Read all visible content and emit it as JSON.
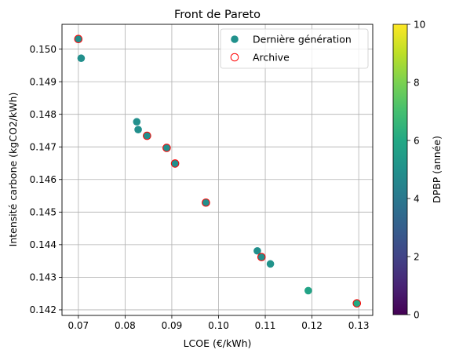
{
  "chart_data": {
    "type": "scatter",
    "title": "Front de Pareto",
    "xlabel": "LCOE (€/kWh)",
    "ylabel": "Intensité carbone (kgCO2/kWh)",
    "xlim": [
      0.0665,
      0.133
    ],
    "ylim": [
      0.14183,
      0.15076
    ],
    "xticks": [
      0.07,
      0.08,
      0.09,
      0.1,
      0.11,
      0.12,
      0.13
    ],
    "xtick_labels": [
      "0.07",
      "0.08",
      "0.09",
      "0.10",
      "0.11",
      "0.12",
      "0.13"
    ],
    "yticks": [
      0.142,
      0.143,
      0.144,
      0.145,
      0.146,
      0.147,
      0.148,
      0.149,
      0.15
    ],
    "ytick_labels": [
      "0.142",
      "0.143",
      "0.144",
      "0.145",
      "0.146",
      "0.147",
      "0.148",
      "0.149",
      "0.150"
    ],
    "grid": true,
    "legend_position": "top-right",
    "legend": [
      "Dernière génération",
      "Archive"
    ],
    "colorbar": {
      "label": "DPBP (année)",
      "range": [
        0,
        10
      ],
      "ticks": [
        0,
        2,
        4,
        6,
        8,
        10
      ],
      "colormap": "viridis"
    },
    "series": [
      {
        "name": "Dernière génération",
        "marker": "filled-circle",
        "points": [
          {
            "x": 0.07,
            "y": 0.15031,
            "c": 4.9
          },
          {
            "x": 0.0706,
            "y": 0.14972,
            "c": 4.9
          },
          {
            "x": 0.0825,
            "y": 0.14777,
            "c": 4.9
          },
          {
            "x": 0.0828,
            "y": 0.14753,
            "c": 4.9
          },
          {
            "x": 0.0847,
            "y": 0.14734,
            "c": 4.9
          },
          {
            "x": 0.0889,
            "y": 0.14697,
            "c": 4.9
          },
          {
            "x": 0.0907,
            "y": 0.14649,
            "c": 4.9
          },
          {
            "x": 0.0973,
            "y": 0.14529,
            "c": 4.9
          },
          {
            "x": 0.1083,
            "y": 0.14381,
            "c": 4.9
          },
          {
            "x": 0.1092,
            "y": 0.14362,
            "c": 4.9
          },
          {
            "x": 0.1111,
            "y": 0.14341,
            "c": 5.1
          },
          {
            "x": 0.1192,
            "y": 0.14259,
            "c": 5.8
          },
          {
            "x": 0.1296,
            "y": 0.1422,
            "c": 6.1
          }
        ]
      },
      {
        "name": "Archive",
        "marker": "open-circle",
        "edge_color": "#ff0000",
        "points": [
          {
            "x": 0.07,
            "y": 0.15031
          },
          {
            "x": 0.0847,
            "y": 0.14734
          },
          {
            "x": 0.0889,
            "y": 0.14697
          },
          {
            "x": 0.0907,
            "y": 0.14649
          },
          {
            "x": 0.0973,
            "y": 0.14529
          },
          {
            "x": 0.1092,
            "y": 0.14362
          },
          {
            "x": 0.1296,
            "y": 0.1422
          }
        ]
      }
    ]
  }
}
